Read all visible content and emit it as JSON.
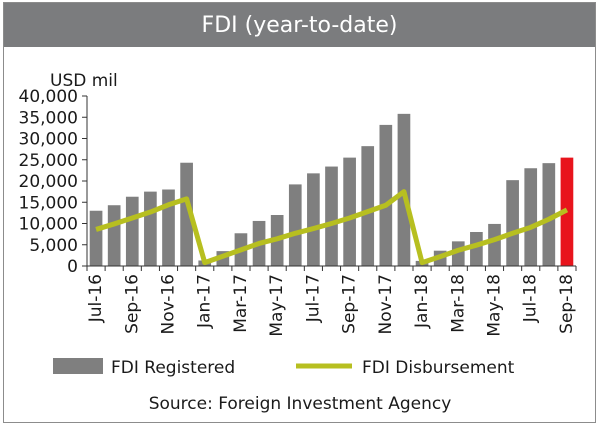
{
  "chart_data": {
    "type": "bar",
    "title": "FDI (year-to-date)",
    "ylabel": "USD mil",
    "xlabel": "",
    "ylim": [
      0,
      40000
    ],
    "yticks": [
      0,
      5000,
      10000,
      15000,
      20000,
      25000,
      30000,
      35000,
      40000
    ],
    "ytick_labels": [
      "0",
      "5,000",
      "10,000",
      "15,000",
      "20,000",
      "25,000",
      "30,000",
      "35,000",
      "40,000"
    ],
    "categories": [
      "Jul-16",
      "Aug-16",
      "Sep-16",
      "Oct-16",
      "Nov-16",
      "Dec-16",
      "Jan-17",
      "Feb-17",
      "Mar-17",
      "Apr-17",
      "May-17",
      "Jun-17",
      "Jul-17",
      "Aug-17",
      "Sep-17",
      "Oct-17",
      "Nov-17",
      "Dec-17",
      "Jan-18",
      "Feb-18",
      "Mar-18",
      "Apr-18",
      "May-18",
      "Jun-18",
      "Jul-18",
      "Aug-18",
      "Sep-18"
    ],
    "tick_labels": [
      "Jul-16",
      "Sep-16",
      "Nov-16",
      "Jan-17",
      "Mar-17",
      "May-17",
      "Jul-17",
      "Sep-17",
      "Nov-17",
      "Jan-18",
      "Mar-18",
      "May-18",
      "Jul-18",
      "Sep-18"
    ],
    "series": [
      {
        "name": "FDI Registered",
        "type": "bar",
        "color": "#7f7f7f",
        "values": [
          13000,
          14300,
          16300,
          17500,
          18000,
          24300,
          1300,
          3500,
          7700,
          10600,
          12000,
          19200,
          21800,
          23400,
          25500,
          28200,
          33200,
          35800,
          1200,
          3600,
          5800,
          8000,
          9900,
          20200,
          23000,
          24200,
          25500
        ]
      },
      {
        "name": "FDI Disbursement",
        "type": "line",
        "color": "#b7bf20",
        "values": [
          8600,
          9900,
          11300,
          12700,
          14400,
          15800,
          800,
          2300,
          3800,
          5300,
          6400,
          7700,
          8800,
          10000,
          11300,
          12800,
          14300,
          17500,
          800,
          2200,
          3700,
          4900,
          6200,
          7700,
          9100,
          11000,
          13200
        ]
      }
    ],
    "highlight": {
      "index": 26,
      "color": "#e8141c"
    },
    "legend_position": "bottom",
    "grid": false
  },
  "source": "Source: Foreign Investment Agency"
}
